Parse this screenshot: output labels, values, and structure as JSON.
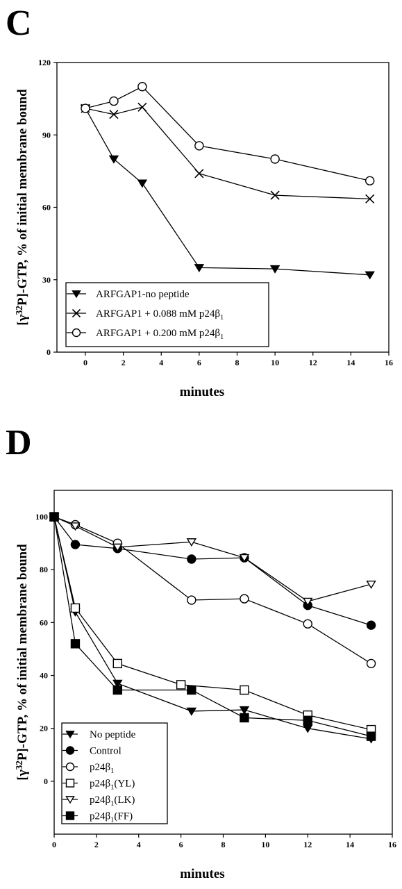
{
  "panels": [
    {
      "letter": "C",
      "chart_data": {
        "type": "line",
        "xlabel": "minutes",
        "ylabel": "[γ³²P]-GTP, % of initial membrane bound",
        "xlim": [
          -1.5,
          16
        ],
        "ylim": [
          0,
          120
        ],
        "xticks": [
          0,
          2,
          4,
          6,
          8,
          10,
          12,
          14,
          16
        ],
        "yticks": [
          0,
          30,
          60,
          90,
          120
        ],
        "grid": false,
        "legend_position": "bottom-left",
        "series": [
          {
            "name": "ARFGAP1-no peptide",
            "marker": "triangle-down-filled",
            "x": [
              0,
              1.5,
              3,
              6,
              10,
              15
            ],
            "y": [
              101,
              80,
              70,
              35,
              34.5,
              32
            ]
          },
          {
            "name": "ARFGAP1 + 0.088 mM p24β₁",
            "marker": "x",
            "x": [
              0,
              1.5,
              3,
              6,
              10,
              15
            ],
            "y": [
              101,
              98.5,
              101.5,
              74,
              65,
              63.5
            ]
          },
          {
            "name": "ARFGAP1 + 0.200 mM p24β₁",
            "marker": "circle-open",
            "x": [
              0,
              1.5,
              3,
              6,
              10,
              15
            ],
            "y": [
              101,
              104,
              110,
              85.5,
              80,
              71
            ]
          }
        ]
      }
    },
    {
      "letter": "D",
      "chart_data": {
        "type": "line",
        "xlabel": "minutes",
        "ylabel": "[γ³²P]-GTP, % of initial membrane bound",
        "xlim": [
          0,
          16
        ],
        "ylim": [
          -20,
          110
        ],
        "xticks": [
          0,
          2,
          4,
          6,
          8,
          10,
          12,
          14,
          16
        ],
        "yticks": [
          0,
          20,
          40,
          60,
          80,
          100
        ],
        "grid": false,
        "legend_position": "bottom-left",
        "series": [
          {
            "name": "No peptide",
            "marker": "triangle-down-filled",
            "x": [
              0,
              1,
              3,
              6.5,
              9,
              12,
              15
            ],
            "y": [
              100,
              64,
              37,
              26.5,
              27,
              20,
              16
            ]
          },
          {
            "name": "Control",
            "marker": "circle-filled",
            "x": [
              0,
              1,
              3,
              6.5,
              9,
              12,
              15
            ],
            "y": [
              100,
              89.5,
              88,
              84,
              84.5,
              66.5,
              59
            ]
          },
          {
            "name": "p24β₁",
            "marker": "circle-open",
            "x": [
              0,
              1,
              3,
              6.5,
              9,
              12,
              15
            ],
            "y": [
              100,
              97,
              90,
              68.5,
              69,
              59.5,
              44.5
            ]
          },
          {
            "name": "p24β₁(YL)",
            "marker": "square-open",
            "x": [
              0,
              1,
              3,
              6,
              9,
              12,
              15
            ],
            "y": [
              100,
              65.5,
              44.5,
              36.5,
              34.5,
              25,
              19.5
            ]
          },
          {
            "name": "p24β₁(LK)",
            "marker": "triangle-down-open",
            "x": [
              0,
              1,
              3,
              6.5,
              9,
              12,
              15
            ],
            "y": [
              100,
              96.5,
              88.5,
              90.5,
              84.5,
              68,
              74.5
            ]
          },
          {
            "name": "p24β₁(FF)",
            "marker": "square-filled",
            "x": [
              0,
              1,
              3,
              6.5,
              9,
              12,
              15
            ],
            "y": [
              100,
              52,
              34.5,
              34.5,
              24,
              23,
              17
            ]
          }
        ]
      }
    }
  ]
}
